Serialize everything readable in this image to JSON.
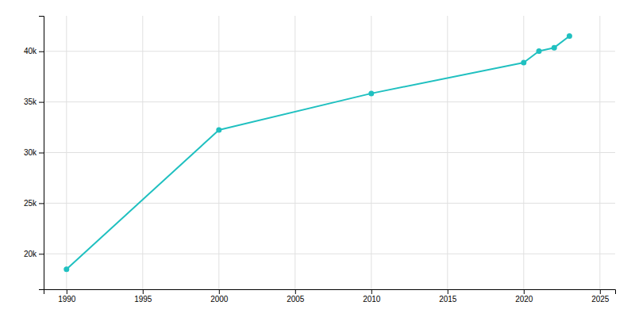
{
  "chart_data": {
    "type": "line",
    "x": [
      1990,
      2000,
      2010,
      2020,
      2021,
      2022,
      2023
    ],
    "values": [
      18480,
      32234,
      35840,
      38888,
      40018,
      40357,
      41500
    ],
    "color": "#20c0c0",
    "marker": "circle",
    "xlim": [
      1988.5,
      2026
    ],
    "ylim": [
      16500,
      43500
    ],
    "xticks": [
      1990,
      1995,
      2000,
      2005,
      2010,
      2015,
      2020,
      2025
    ],
    "yticks": [
      {
        "value": 20000,
        "label": "20k"
      },
      {
        "value": 25000,
        "label": "25k"
      },
      {
        "value": 30000,
        "label": "30k"
      },
      {
        "value": 35000,
        "label": "35k"
      },
      {
        "value": 40000,
        "label": "40k"
      }
    ],
    "grid": true
  }
}
